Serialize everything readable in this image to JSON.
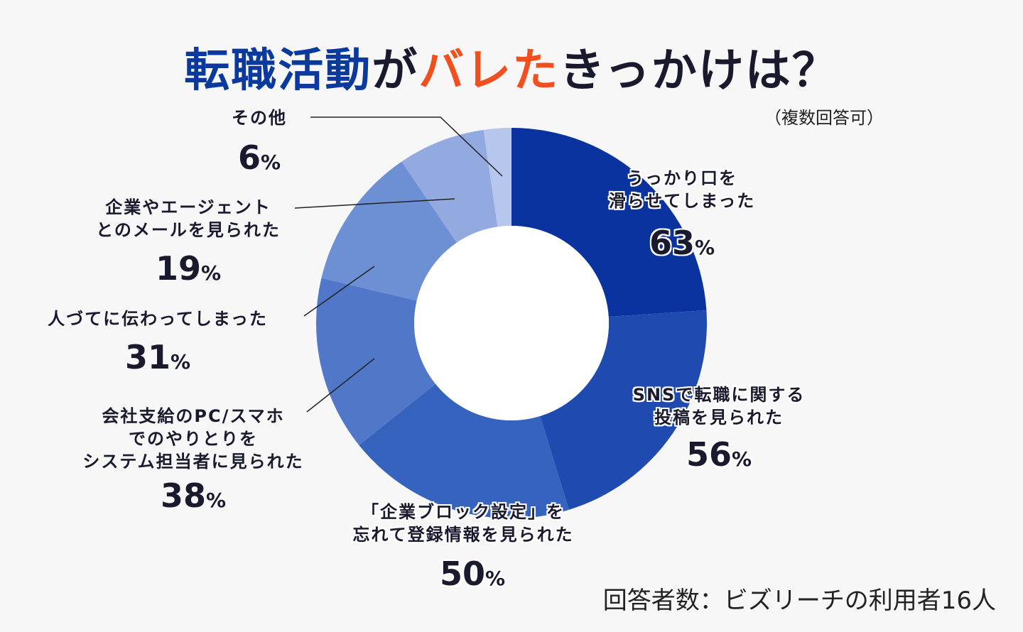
{
  "chart_data": {
    "type": "donut",
    "title_parts": [
      {
        "text": "転職活動",
        "color": "#0b3a9e"
      },
      {
        "text": "が",
        "color": "#1a1a2e"
      },
      {
        "text": "バレた",
        "color": "#f0501e"
      },
      {
        "text": "きっかけは？",
        "color": "#1a1a2e"
      }
    ],
    "subtitle": "（複数回答可）",
    "categories": [
      "うっかり口を\n滑らせてしまった",
      "SNSで転職に関する\n投稿を見られた",
      "「企業ブロック設定」を\n忘れて登録情報を見られた",
      "会社支給のPC/スマホ\nでのやりとりを\nシステム担当者に見られた",
      "人づてに伝わってしまった",
      "企業やエージェント\nとのメールを見られた",
      "その他"
    ],
    "values": [
      63,
      56,
      50,
      38,
      31,
      19,
      6
    ],
    "value_labels": [
      "63%",
      "56%",
      "50%",
      "38%",
      "31%",
      "19%",
      "6%"
    ],
    "colors": [
      "#0a33a0",
      "#1f4bb0",
      "#3563be",
      "#5178c8",
      "#6d8fd3",
      "#92aadf",
      "#b6c6ec"
    ],
    "footnote": "回答者数：ビズリーチの利用者16人"
  }
}
